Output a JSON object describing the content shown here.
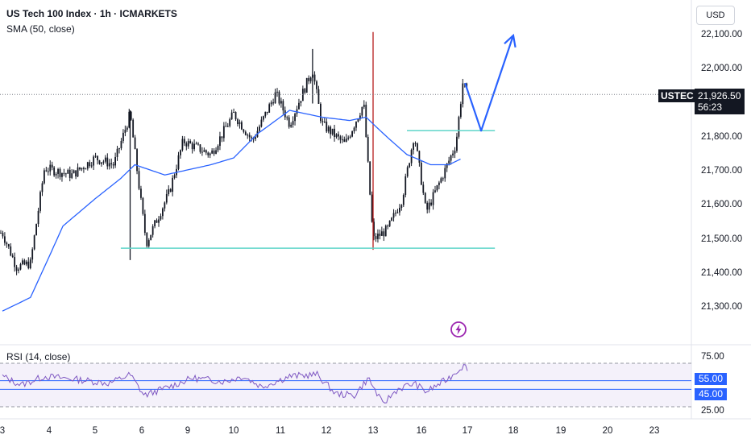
{
  "header": {
    "title": "US Tech 100 Index · 1h · ICMARKETS",
    "indicator": "SMA (50, close)"
  },
  "currency_label": "USD",
  "price_badge": {
    "symbol": "USTEC",
    "price": "21,926.50",
    "countdown": "56:23"
  },
  "rsi": {
    "label": "RSI (14, close)",
    "levels": [
      "75.00",
      "55.00",
      "45.00",
      "25.00"
    ],
    "badges": [
      "55.00",
      "45.00"
    ]
  },
  "colors": {
    "up": "#26a69a",
    "down": "#ef5350",
    "candle": "#131722",
    "sma": "#2962ff",
    "support": "#5fd5c9",
    "projection": "#2962ff",
    "rsi_line": "#7e57c2",
    "rsi_band": "#ede7f6"
  },
  "chart_data": {
    "type": "candlestick",
    "symbol": "US Tech 100 Index",
    "timeframe": "1h",
    "y_ticks": [
      "22,100.00",
      "22,000.00",
      "21,900.00",
      "21,800.00",
      "21,700.00",
      "21,600.00",
      "21,500.00",
      "21,400.00",
      "21,300.00"
    ],
    "y_range": [
      21210,
      22170
    ],
    "x_ticks": [
      "3",
      "4",
      "5",
      "6",
      "9",
      "10",
      "11",
      "12",
      "13",
      "16",
      "17",
      "18",
      "19",
      "20",
      "23"
    ],
    "last_price": 21926.5,
    "price_keypoints": [
      {
        "day": 0.0,
        "price": 21520
      },
      {
        "day": 0.3,
        "price": 21420
      },
      {
        "day": 0.6,
        "price": 21430
      },
      {
        "day": 0.9,
        "price": 21710
      },
      {
        "day": 1.5,
        "price": 21690
      },
      {
        "day": 2.0,
        "price": 21740
      },
      {
        "day": 2.4,
        "price": 21720
      },
      {
        "day": 2.75,
        "price": 21870
      },
      {
        "day": 3.0,
        "price": 21590
      },
      {
        "day": 3.1,
        "price": 21490
      },
      {
        "day": 3.6,
        "price": 21640
      },
      {
        "day": 3.9,
        "price": 21790
      },
      {
        "day": 4.5,
        "price": 21750
      },
      {
        "day": 5.0,
        "price": 21870
      },
      {
        "day": 5.4,
        "price": 21790
      },
      {
        "day": 5.9,
        "price": 21930
      },
      {
        "day": 6.2,
        "price": 21840
      },
      {
        "day": 6.7,
        "price": 22000
      },
      {
        "day": 6.9,
        "price": 21840
      },
      {
        "day": 7.4,
        "price": 21780
      },
      {
        "day": 7.8,
        "price": 21900
      },
      {
        "day": 8.0,
        "price": 21500
      },
      {
        "day": 8.3,
        "price": 21530
      },
      {
        "day": 8.6,
        "price": 21620
      },
      {
        "day": 8.85,
        "price": 21810
      },
      {
        "day": 9.1,
        "price": 21580
      },
      {
        "day": 9.5,
        "price": 21700
      },
      {
        "day": 9.75,
        "price": 21780
      },
      {
        "day": 9.9,
        "price": 21960
      },
      {
        "day": 10.0,
        "price": 21926.5
      }
    ],
    "sma_keypoints": [
      {
        "day": 0.0,
        "price": 21290
      },
      {
        "day": 0.6,
        "price": 21330
      },
      {
        "day": 1.3,
        "price": 21540
      },
      {
        "day": 2.0,
        "price": 21620
      },
      {
        "day": 2.55,
        "price": 21680
      },
      {
        "day": 2.85,
        "price": 21720
      },
      {
        "day": 3.5,
        "price": 21690
      },
      {
        "day": 4.5,
        "price": 21720
      },
      {
        "day": 5.0,
        "price": 21740
      },
      {
        "day": 5.5,
        "price": 21810
      },
      {
        "day": 6.2,
        "price": 21880
      },
      {
        "day": 6.9,
        "price": 21860
      },
      {
        "day": 7.5,
        "price": 21850
      },
      {
        "day": 7.85,
        "price": 21860
      },
      {
        "day": 8.3,
        "price": 21800
      },
      {
        "day": 8.7,
        "price": 21750
      },
      {
        "day": 9.2,
        "price": 21720
      },
      {
        "day": 9.6,
        "price": 21720
      },
      {
        "day": 9.9,
        "price": 21740
      }
    ],
    "support_lines": [
      {
        "price": 21475,
        "from_day": 2.55,
        "to_day": 10.6
      },
      {
        "price": 21820,
        "from_day": 8.7,
        "to_day": 10.6
      }
    ],
    "projection_path": [
      {
        "day": 9.95,
        "price": 21960
      },
      {
        "day": 10.3,
        "price": 21820
      },
      {
        "day": 11.0,
        "price": 22100
      }
    ],
    "rsi_keypoints": [
      {
        "day": 0.0,
        "value": 60
      },
      {
        "day": 0.4,
        "value": 50
      },
      {
        "day": 0.9,
        "value": 60
      },
      {
        "day": 1.5,
        "value": 57
      },
      {
        "day": 2.3,
        "value": 52
      },
      {
        "day": 2.75,
        "value": 62
      },
      {
        "day": 3.05,
        "value": 38
      },
      {
        "day": 3.6,
        "value": 48
      },
      {
        "day": 4.1,
        "value": 58
      },
      {
        "day": 4.8,
        "value": 54
      },
      {
        "day": 5.2,
        "value": 60
      },
      {
        "day": 5.6,
        "value": 48
      },
      {
        "day": 6.2,
        "value": 60
      },
      {
        "day": 6.8,
        "value": 62
      },
      {
        "day": 7.2,
        "value": 40
      },
      {
        "day": 7.6,
        "value": 38
      },
      {
        "day": 7.9,
        "value": 58
      },
      {
        "day": 8.2,
        "value": 28
      },
      {
        "day": 8.5,
        "value": 45
      },
      {
        "day": 8.85,
        "value": 52
      },
      {
        "day": 9.1,
        "value": 42
      },
      {
        "day": 9.6,
        "value": 58
      },
      {
        "day": 9.9,
        "value": 72
      },
      {
        "day": 10.0,
        "value": 70
      }
    ],
    "rsi_range": [
      25,
      75
    ],
    "rsi_bands": [
      45,
      55
    ]
  }
}
